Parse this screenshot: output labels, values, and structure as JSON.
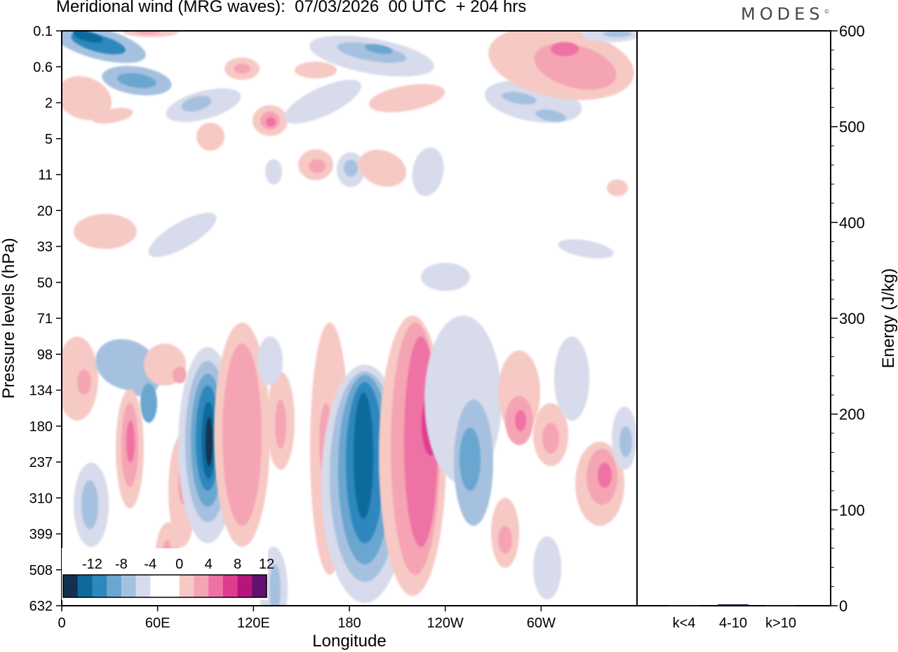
{
  "title": "Meridional wind (MRG waves):  07/03/2026  00 UTC  + 204 hrs",
  "brand": "MODES",
  "brand_mark": "©",
  "colors": {
    "neg": [
      "#12314f",
      "#0f6a9c",
      "#2e87bd",
      "#6aa6cf",
      "#a6c1df",
      "#d7dbeb"
    ],
    "zero": "#ffffff",
    "pos": [
      "#f7c9c4",
      "#f5a4b4",
      "#ee72a3",
      "#e03c8f",
      "#b8157c",
      "#62116e"
    ]
  },
  "chart_data": [
    {
      "type": "heatmap",
      "title": "Meridional wind (MRG waves)",
      "xlabel": "Longitude",
      "ylabel": "Pressure levels (hPa)",
      "x_ticks": [
        "0",
        "60E",
        "120E",
        "180",
        "120W",
        "60W"
      ],
      "y_ticks": [
        "0.1",
        "0.6",
        "2",
        "5",
        "11",
        "20",
        "33",
        "50",
        "71",
        "98",
        "134",
        "180",
        "237",
        "310",
        "399",
        "508",
        "632"
      ],
      "colorbar": {
        "levels": [
          -14,
          -12,
          -10,
          -8,
          -6,
          -4,
          -2,
          0,
          2,
          4,
          6,
          8,
          10,
          12,
          14
        ],
        "tick_labels": [
          "-12",
          "-8",
          "-4",
          "0",
          "4",
          "8",
          "12"
        ]
      },
      "features": [
        {
          "lon": 92,
          "level": "237",
          "value": -14
        },
        {
          "lon": 188,
          "level": "237",
          "value": -12
        },
        {
          "lon": 212,
          "level": "180",
          "value": 11
        },
        {
          "lon": 45,
          "level": "237",
          "value": 7
        },
        {
          "lon": 65,
          "level": "180",
          "value": -7
        },
        {
          "lon": 255,
          "level": "237",
          "value": -6
        },
        {
          "lon": 342,
          "level": "237",
          "value": 7
        },
        {
          "lon": 127,
          "level": "5",
          "value": 8
        },
        {
          "lon": 35,
          "level": "0.1",
          "value": -6
        }
      ]
    },
    {
      "type": "bar",
      "ylabel": "Energy (J/kg)",
      "categories": [
        "k<4",
        "4-10",
        "k>10"
      ],
      "values": [
        0.4,
        1.5,
        0.4
      ],
      "ylim": [
        0,
        600
      ],
      "y_ticks": [
        0,
        100,
        200,
        300,
        400,
        500,
        600
      ]
    }
  ]
}
